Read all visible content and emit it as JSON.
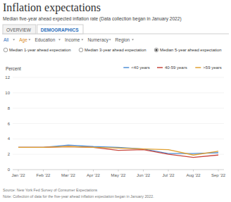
{
  "controls": {
    "tabs": [
      "OVERVIEW",
      "DEMOGRAPHICS"
    ],
    "filters": [
      "All",
      "Age",
      "Education",
      "Income",
      "Numeracy",
      "Region"
    ],
    "options": [
      "Median 1-year ahead expectation",
      "Median 3-year ahead expectation",
      "Median 5-year ahead expectation"
    ]
  },
  "chart_data": {
    "type": "line",
    "title": "Inflation expectations",
    "subtitle": "Median five-year ahead expected inflation rate (Data collection began in January 2022)",
    "ylabel": "Percent",
    "source": "Source: New York Fed Survey of Consumer Expectations",
    "note": "Note: Collection of data for the five-year ahead inflation expectation began in January 2022.",
    "categories": [
      "Jan '22",
      "Feb '22",
      "Mar '22",
      "Apr '22",
      "May '22",
      "Jun '22",
      "Jul '22",
      "Aug '22",
      "Sep '22"
    ],
    "series": [
      {
        "name": "<40 years",
        "color": "#4f8fd6",
        "values": [
          2.9,
          2.9,
          3.2,
          3.0,
          2.9,
          2.7,
          2.1,
          2.1,
          2.2
        ]
      },
      {
        "name": "40-59 years",
        "color": "#c9463d",
        "values": [
          2.9,
          2.9,
          3.0,
          2.9,
          2.5,
          2.6,
          2.0,
          1.6,
          1.9
        ]
      },
      {
        "name": ">59 years",
        "color": "#e0a030",
        "values": [
          2.9,
          2.9,
          3.0,
          2.9,
          2.8,
          2.7,
          2.6,
          1.9,
          2.4
        ]
      }
    ],
    "ylim": [
      0,
      12
    ],
    "yticks": [
      0,
      2,
      4,
      6,
      8,
      10,
      12
    ],
    "grid": true,
    "legend": "top-right"
  }
}
